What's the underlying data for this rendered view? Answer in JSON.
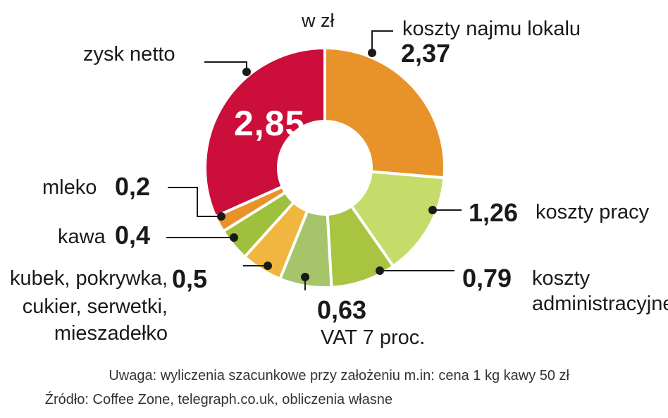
{
  "unit_label": "w zł",
  "chart_data": {
    "type": "pie",
    "variant": "donut",
    "slices": [
      {
        "label": "koszty najmu lokalu",
        "value": 2.37,
        "display": "2,37",
        "color": "#E8932A"
      },
      {
        "label": "koszty pracy",
        "value": 1.26,
        "display": "1,26",
        "color": "#C5DC6A"
      },
      {
        "label": "koszty administracyjne",
        "value": 0.79,
        "display": "0,79",
        "color": "#A9C441"
      },
      {
        "label": "VAT 7 proc.",
        "value": 0.63,
        "display": "0,63",
        "color": "#A6C46A"
      },
      {
        "label": "kubek, pokrywka, cukier, serwetki, mieszadełko",
        "value": 0.5,
        "display": "0,5",
        "color": "#F0B63F"
      },
      {
        "label": "kawa",
        "value": 0.4,
        "display": "0,4",
        "color": "#9FC03C"
      },
      {
        "label": "mleko",
        "value": 0.2,
        "display": "0,2",
        "color": "#E8932A"
      },
      {
        "label": "zysk netto",
        "value": 2.85,
        "display": "2,85",
        "color": "#CC0E3A"
      }
    ]
  },
  "labels": {
    "rent_name": "koszty najmu lokalu",
    "rent_value": "2,37",
    "labor_value": "1,26",
    "labor_name": "koszty pracy",
    "admin_value": "0,79",
    "admin_name_1": "koszty",
    "admin_name_2": "administracyjne",
    "vat_value": "0,63",
    "vat_name": "VAT 7 proc.",
    "cup_name_1": "kubek, pokrywka,",
    "cup_name_2": "cukier, serwetki,",
    "cup_name_3": "mieszadełko",
    "cup_value": "0,5",
    "coffee_name": "kawa",
    "coffee_value": "0,4",
    "milk_name": "mleko",
    "milk_value": "0,2",
    "profit_name": "zysk netto",
    "profit_value": "2,85"
  },
  "footnote": {
    "line1": "Uwaga: wyliczenia szacunkowe przy założeniu m.in: cena 1 kg kawy 50 zł",
    "line2": "Źródło: Coffee Zone, telegraph.co.uk, obliczenia własne"
  }
}
